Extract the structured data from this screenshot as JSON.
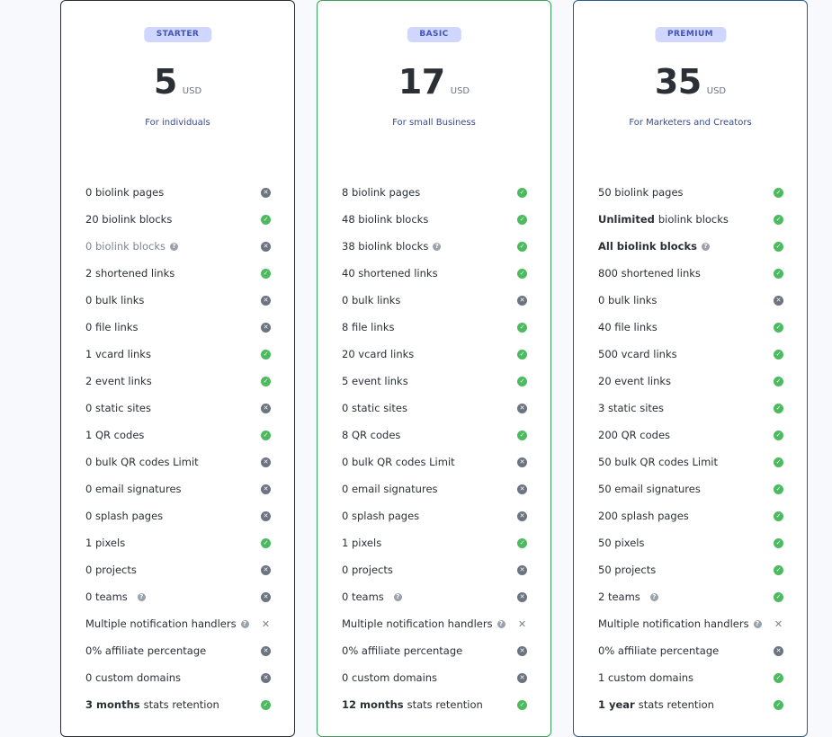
{
  "plans": [
    {
      "badge": "STARTER",
      "price": "5",
      "currency": "USD",
      "subtitle": "For individuals",
      "features": [
        {
          "bold": "",
          "text": "0 biolink pages",
          "status": "no"
        },
        {
          "bold": "",
          "text": "20 biolink blocks",
          "status": "yes"
        },
        {
          "bold": "",
          "text": "0 biolink blocks",
          "status": "no",
          "muted": true,
          "help": true
        },
        {
          "bold": "",
          "text": "2 shortened links",
          "status": "yes"
        },
        {
          "bold": "",
          "text": "0 bulk links",
          "status": "no"
        },
        {
          "bold": "",
          "text": "0 file links",
          "status": "no"
        },
        {
          "bold": "",
          "text": "1 vcard links",
          "status": "yes"
        },
        {
          "bold": "",
          "text": "2 event links",
          "status": "yes"
        },
        {
          "bold": "",
          "text": "0 static sites",
          "status": "no"
        },
        {
          "bold": "",
          "text": "1 QR codes",
          "status": "yes"
        },
        {
          "bold": "",
          "text": "0 bulk QR codes Limit",
          "status": "no"
        },
        {
          "bold": "",
          "text": "0 email signatures",
          "status": "no"
        },
        {
          "bold": "",
          "text": "0 splash pages",
          "status": "no"
        },
        {
          "bold": "",
          "text": "1 pixels",
          "status": "yes"
        },
        {
          "bold": "",
          "text": "0 projects",
          "status": "no"
        },
        {
          "bold": "",
          "text": "0 teams",
          "status": "no",
          "help": true,
          "gap": true
        },
        {
          "bold": "",
          "text": "Multiple notification handlers",
          "status": "x",
          "help": true
        },
        {
          "bold": "",
          "text": "0% affiliate percentage",
          "status": "no"
        },
        {
          "bold": "",
          "text": "0 custom domains",
          "status": "no"
        },
        {
          "bold": "3 months",
          "text": "stats retention",
          "status": "yes"
        }
      ]
    },
    {
      "badge": "BASIC",
      "price": "17",
      "currency": "USD",
      "subtitle": "For small Business",
      "features": [
        {
          "bold": "",
          "text": "8 biolink pages",
          "status": "yes"
        },
        {
          "bold": "",
          "text": "48 biolink blocks",
          "status": "yes"
        },
        {
          "bold": "",
          "text": "38 biolink blocks",
          "status": "yes",
          "help": true
        },
        {
          "bold": "",
          "text": "40 shortened links",
          "status": "yes"
        },
        {
          "bold": "",
          "text": "0 bulk links",
          "status": "no"
        },
        {
          "bold": "",
          "text": "8 file links",
          "status": "yes"
        },
        {
          "bold": "",
          "text": "20 vcard links",
          "status": "yes"
        },
        {
          "bold": "",
          "text": "5 event links",
          "status": "yes"
        },
        {
          "bold": "",
          "text": "0 static sites",
          "status": "no"
        },
        {
          "bold": "",
          "text": "8 QR codes",
          "status": "yes"
        },
        {
          "bold": "",
          "text": "0 bulk QR codes Limit",
          "status": "no"
        },
        {
          "bold": "",
          "text": "0 email signatures",
          "status": "no"
        },
        {
          "bold": "",
          "text": "0 splash pages",
          "status": "no"
        },
        {
          "bold": "",
          "text": "1 pixels",
          "status": "yes"
        },
        {
          "bold": "",
          "text": "0 projects",
          "status": "no"
        },
        {
          "bold": "",
          "text": "0 teams",
          "status": "no",
          "help": true,
          "gap": true
        },
        {
          "bold": "",
          "text": "Multiple notification handlers",
          "status": "x",
          "help": true
        },
        {
          "bold": "",
          "text": "0% affiliate percentage",
          "status": "no"
        },
        {
          "bold": "",
          "text": "0 custom domains",
          "status": "no"
        },
        {
          "bold": "12 months",
          "text": "stats retention",
          "status": "yes"
        }
      ]
    },
    {
      "badge": "PREMIUM",
      "price": "35",
      "currency": "USD",
      "subtitle": "For Marketers and Creators",
      "features": [
        {
          "bold": "",
          "text": "50 biolink pages",
          "status": "yes"
        },
        {
          "bold": "Unlimited",
          "text": "biolink blocks",
          "status": "yes"
        },
        {
          "bold": "All biolink blocks",
          "text": "",
          "status": "yes",
          "help": true
        },
        {
          "bold": "",
          "text": "800 shortened links",
          "status": "yes"
        },
        {
          "bold": "",
          "text": "0 bulk links",
          "status": "no"
        },
        {
          "bold": "",
          "text": "40 file links",
          "status": "yes"
        },
        {
          "bold": "",
          "text": "500 vcard links",
          "status": "yes"
        },
        {
          "bold": "",
          "text": "20 event links",
          "status": "yes"
        },
        {
          "bold": "",
          "text": "3 static sites",
          "status": "yes"
        },
        {
          "bold": "",
          "text": "200 QR codes",
          "status": "yes"
        },
        {
          "bold": "",
          "text": "50 bulk QR codes Limit",
          "status": "yes"
        },
        {
          "bold": "",
          "text": "50 email signatures",
          "status": "yes"
        },
        {
          "bold": "",
          "text": "200 splash pages",
          "status": "yes"
        },
        {
          "bold": "",
          "text": "50 pixels",
          "status": "yes"
        },
        {
          "bold": "",
          "text": "50 projects",
          "status": "yes"
        },
        {
          "bold": "",
          "text": "2 teams",
          "status": "yes",
          "help": true,
          "gap": true
        },
        {
          "bold": "",
          "text": "Multiple notification handlers",
          "status": "x",
          "help": true
        },
        {
          "bold": "",
          "text": "0% affiliate percentage",
          "status": "no"
        },
        {
          "bold": "",
          "text": "1 custom domains",
          "status": "yes"
        },
        {
          "bold": "1 year",
          "text": "stats retention",
          "status": "yes"
        }
      ]
    }
  ],
  "icons": {
    "yes": "check-circle-icon",
    "no": "x-circle-icon",
    "x": "x-mark-icon",
    "help": "question-circle-icon"
  },
  "colors": {
    "check_green": "#4cbb5f",
    "cross_gray": "#6c7480",
    "badge_bg": "#cfd6ff",
    "badge_text": "#4654b4",
    "starter_border": "#2a2d33",
    "basic_border": "#3aa25a",
    "premium_border": "#2d5b8d"
  }
}
